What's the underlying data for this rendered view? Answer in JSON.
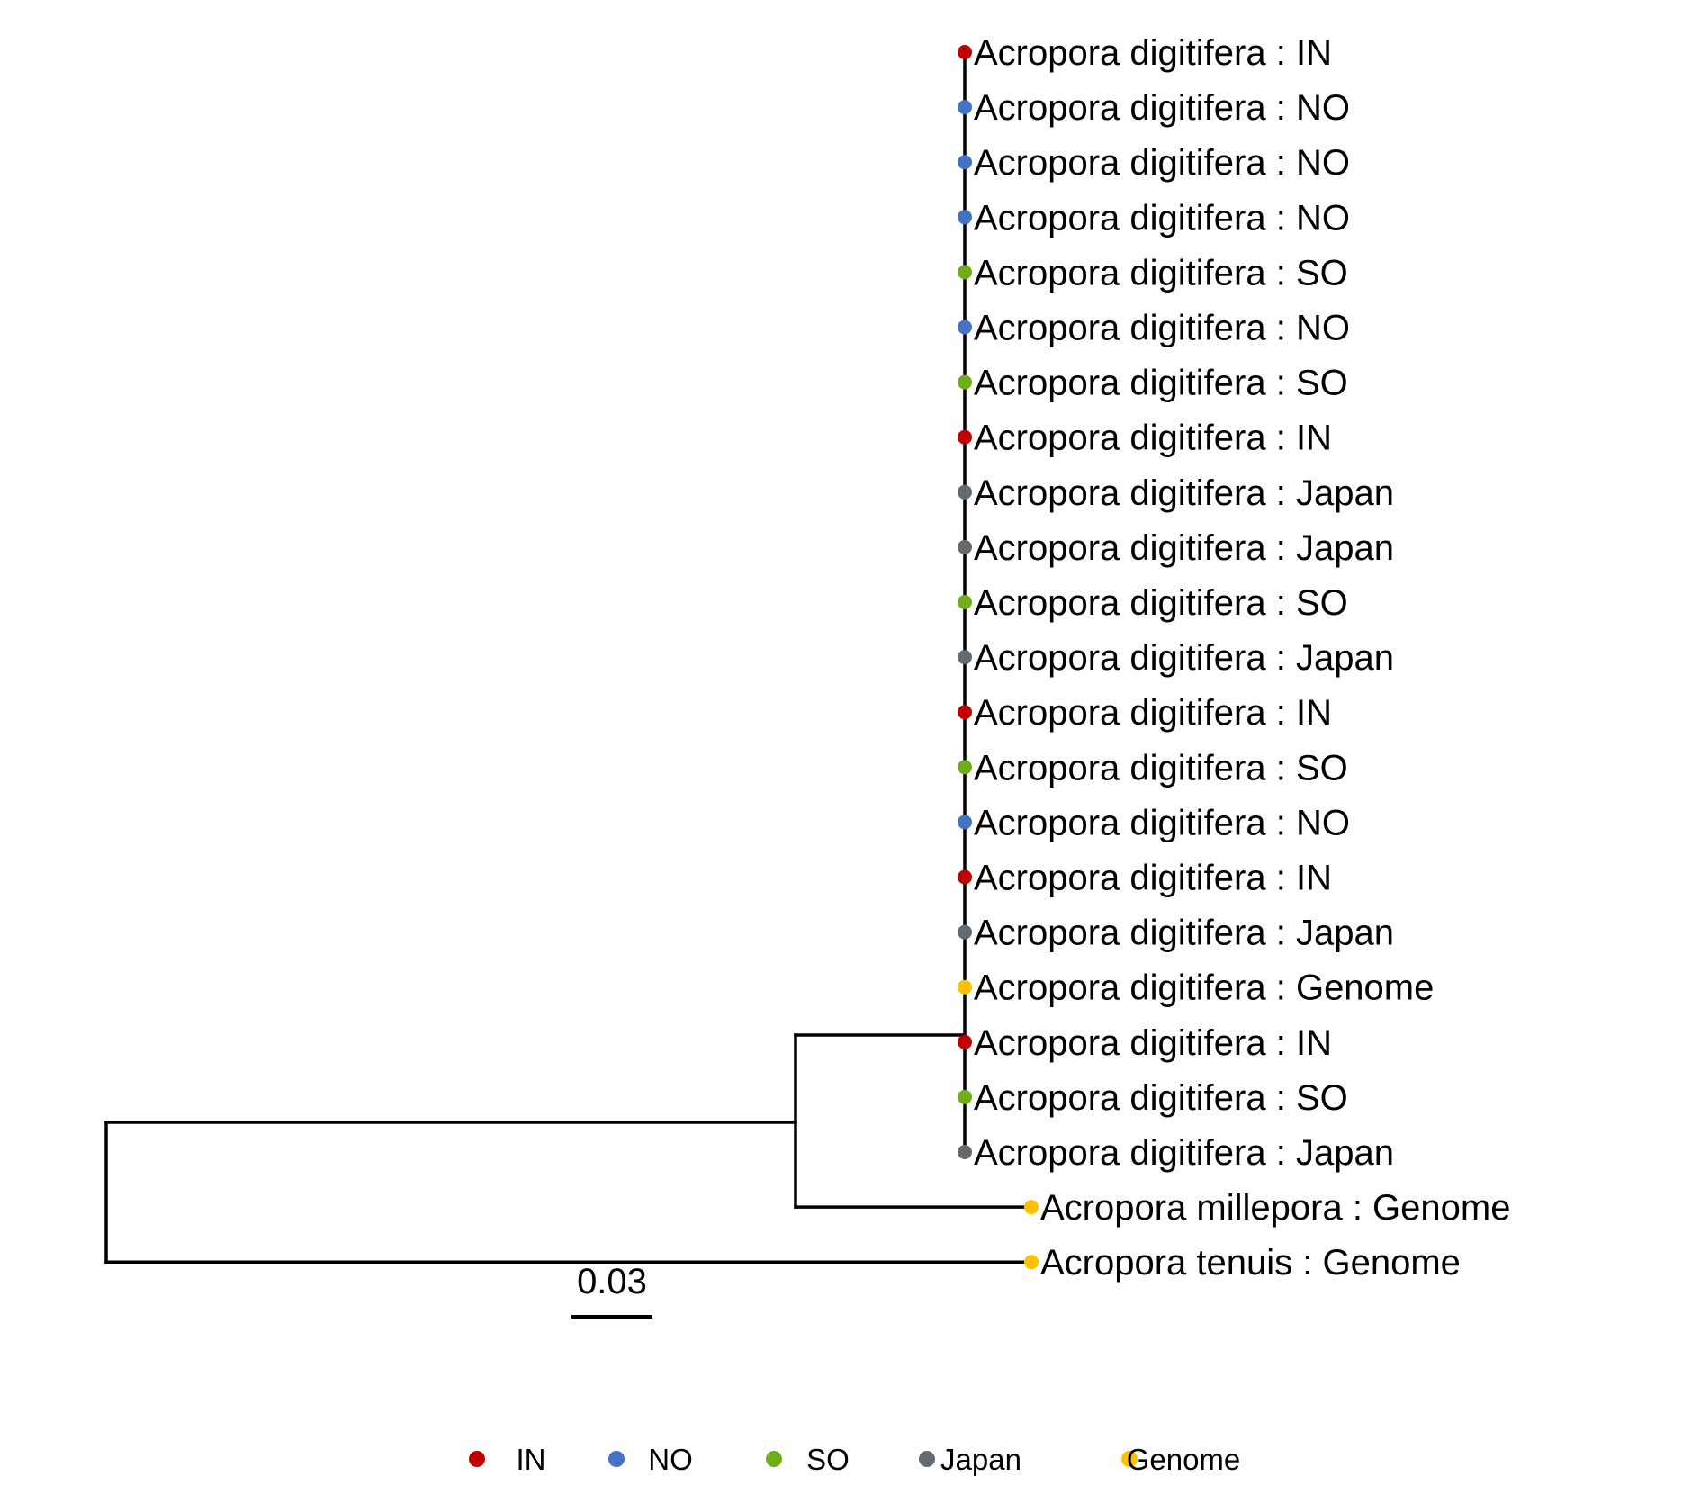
{
  "tree": {
    "tips": [
      {
        "taxon": "Acropora digitifera",
        "group": "IN",
        "label": "Acropora digitifera : IN"
      },
      {
        "taxon": "Acropora digitifera",
        "group": "NO",
        "label": "Acropora digitifera : NO"
      },
      {
        "taxon": "Acropora digitifera",
        "group": "NO",
        "label": "Acropora digitifera : NO"
      },
      {
        "taxon": "Acropora digitifera",
        "group": "NO",
        "label": "Acropora digitifera : NO"
      },
      {
        "taxon": "Acropora digitifera",
        "group": "SO",
        "label": "Acropora digitifera : SO"
      },
      {
        "taxon": "Acropora digitifera",
        "group": "NO",
        "label": "Acropora digitifera : NO"
      },
      {
        "taxon": "Acropora digitifera",
        "group": "SO",
        "label": "Acropora digitifera : SO"
      },
      {
        "taxon": "Acropora digitifera",
        "group": "IN",
        "label": "Acropora digitifera : IN"
      },
      {
        "taxon": "Acropora digitifera",
        "group": "Japan",
        "label": "Acropora digitifera : Japan"
      },
      {
        "taxon": "Acropora digitifera",
        "group": "Japan",
        "label": "Acropora digitifera : Japan"
      },
      {
        "taxon": "Acropora digitifera",
        "group": "SO",
        "label": "Acropora digitifera : SO"
      },
      {
        "taxon": "Acropora digitifera",
        "group": "Japan",
        "label": "Acropora digitifera : Japan"
      },
      {
        "taxon": "Acropora digitifera",
        "group": "IN",
        "label": "Acropora digitifera : IN"
      },
      {
        "taxon": "Acropora digitifera",
        "group": "SO",
        "label": "Acropora digitifera : SO"
      },
      {
        "taxon": "Acropora digitifera",
        "group": "NO",
        "label": "Acropora digitifera : NO"
      },
      {
        "taxon": "Acropora digitifera",
        "group": "IN",
        "label": "Acropora digitifera : IN"
      },
      {
        "taxon": "Acropora digitifera",
        "group": "Japan",
        "label": "Acropora digitifera : Japan"
      },
      {
        "taxon": "Acropora digitifera",
        "group": "Genome",
        "label": "Acropora digitifera : Genome"
      },
      {
        "taxon": "Acropora digitifera",
        "group": "IN",
        "label": "Acropora digitifera : IN"
      },
      {
        "taxon": "Acropora digitifera",
        "group": "SO",
        "label": "Acropora digitifera : SO"
      },
      {
        "taxon": "Acropora digitifera",
        "group": "Japan",
        "label": "Acropora digitifera : Japan"
      },
      {
        "taxon": "Acropora millepora",
        "group": "Genome",
        "label": "Acropora millepora : Genome"
      },
      {
        "taxon": "Acropora tenuis",
        "group": "Genome",
        "label": "Acropora tenuis : Genome"
      }
    ],
    "scale_bar": {
      "length": 0.03,
      "label": "0.03"
    }
  },
  "legend": {
    "placement": "bottom",
    "items": [
      {
        "label": "IN",
        "color": "#c00000"
      },
      {
        "label": "NO",
        "color": "#4472c4"
      },
      {
        "label": "SO",
        "color": "#70ad1a"
      },
      {
        "label": "Japan",
        "color": "#636b72"
      },
      {
        "label": "Genome",
        "color": "#ffc000"
      }
    ]
  },
  "colors": {
    "branch": "#000000",
    "label_text": "#000000"
  }
}
